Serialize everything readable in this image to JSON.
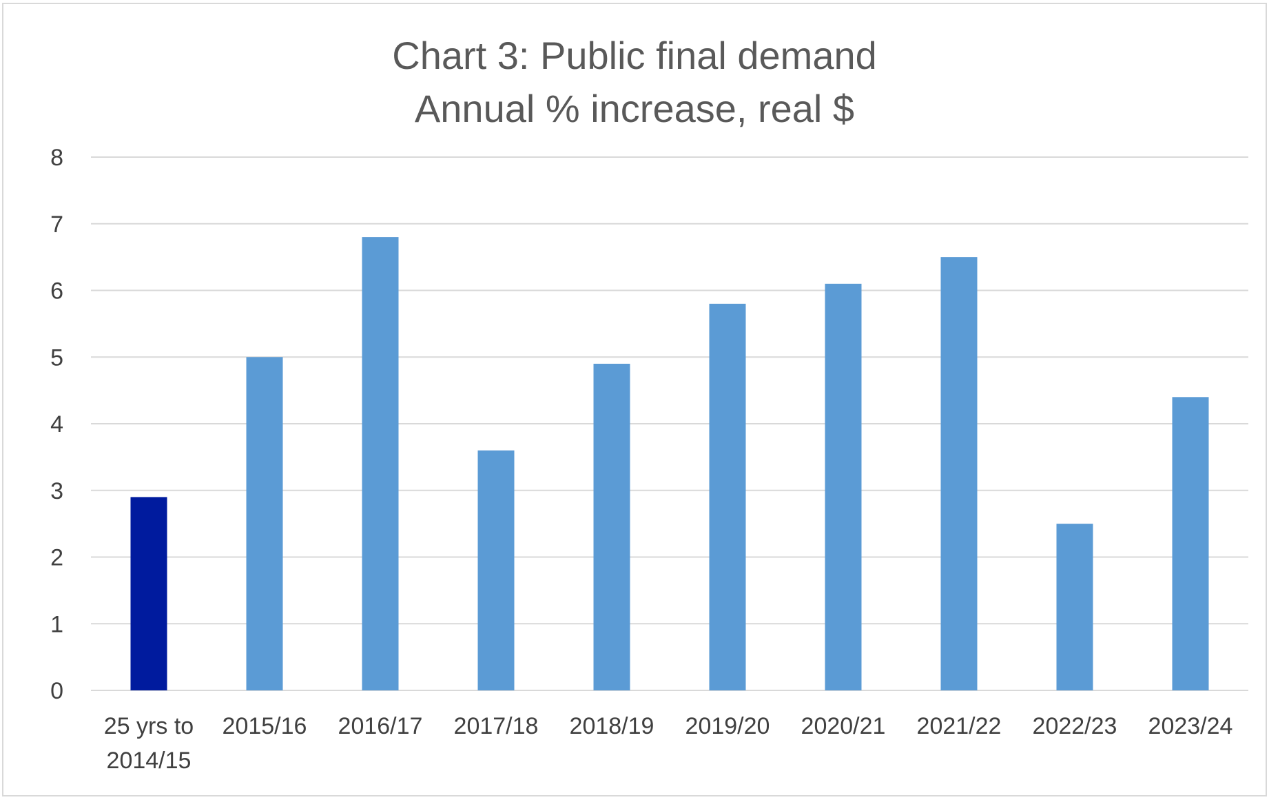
{
  "chart_data": {
    "type": "bar",
    "title": "Chart 3: Public final demand",
    "subtitle": "Annual % increase, real $",
    "xlabel": "",
    "ylabel": "",
    "categories": [
      [
        "25 yrs to",
        "2014/15"
      ],
      [
        "2015/16"
      ],
      [
        "2016/17"
      ],
      [
        "2017/18"
      ],
      [
        "2018/19"
      ],
      [
        "2019/20"
      ],
      [
        "2020/21"
      ],
      [
        "2021/22"
      ],
      [
        "2022/23"
      ],
      [
        "2023/24"
      ]
    ],
    "values": [
      2.9,
      5.0,
      6.8,
      3.6,
      4.9,
      5.8,
      6.1,
      6.5,
      2.5,
      4.4
    ],
    "bar_colors": [
      "#001b9e",
      "#5b9bd5",
      "#5b9bd5",
      "#5b9bd5",
      "#5b9bd5",
      "#5b9bd5",
      "#5b9bd5",
      "#5b9bd5",
      "#5b9bd5",
      "#5b9bd5"
    ],
    "ylim": [
      0,
      8
    ],
    "yticks": [
      0,
      1,
      2,
      3,
      4,
      5,
      6,
      7,
      8
    ],
    "grid": true,
    "gridline_color": "#d9d9d9",
    "legend": "none"
  }
}
